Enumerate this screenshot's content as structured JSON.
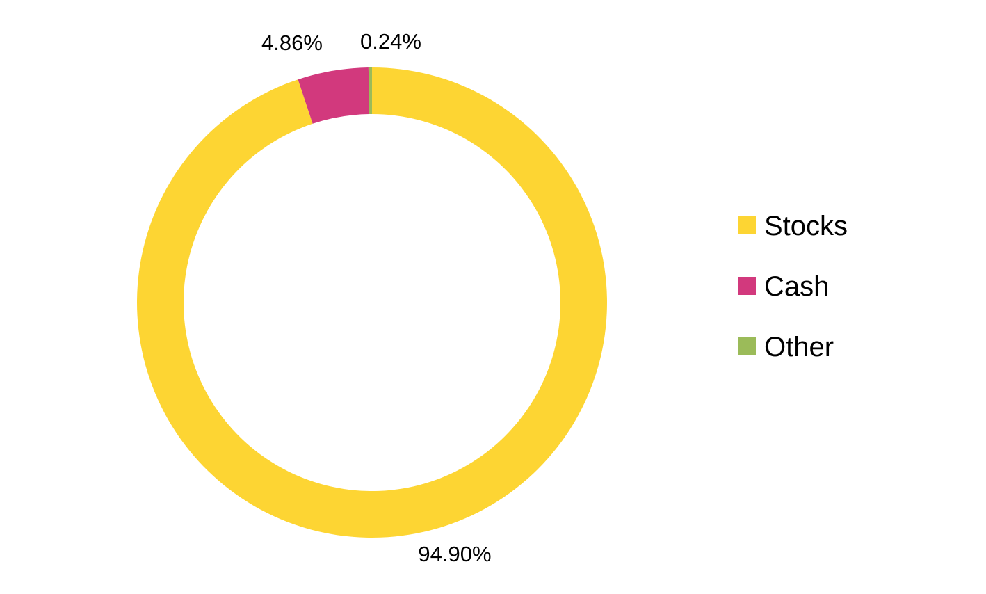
{
  "chart_data": {
    "type": "pie",
    "donut": true,
    "categories": [
      "Stocks",
      "Cash",
      "Other"
    ],
    "values": [
      94.9,
      4.86,
      0.24
    ],
    "labels": [
      "94.90%",
      "4.86%",
      "0.24%"
    ],
    "colors": [
      "#FDD533",
      "#D2397D",
      "#9BBB59"
    ],
    "legend_position": "right",
    "title": ""
  }
}
